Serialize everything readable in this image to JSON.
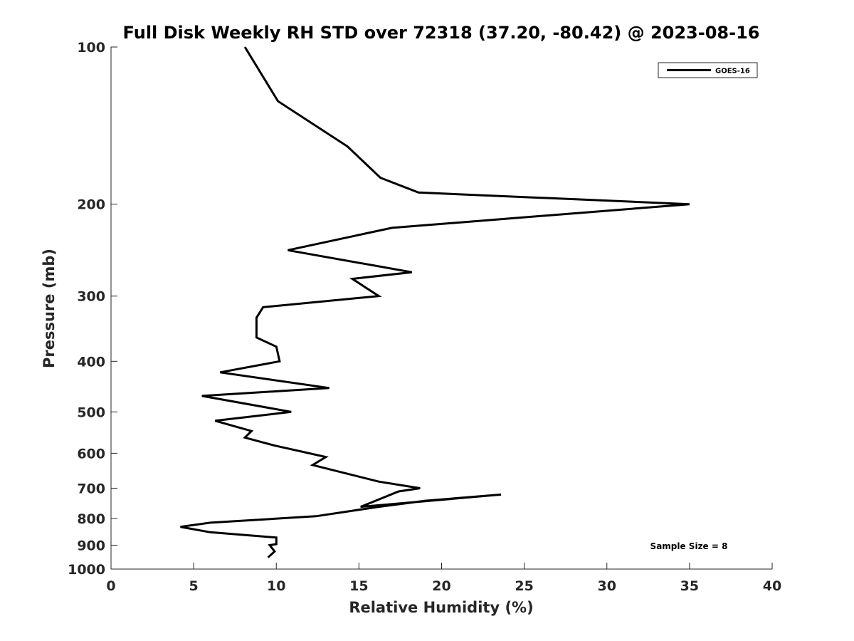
{
  "chart_data": {
    "type": "line",
    "title": "Full Disk Weekly RH STD over 72318 (37.20, -80.42) @ 2023-08-16",
    "xlabel": "Relative Humidity (%)",
    "ylabel": "Pressure (mb)",
    "xlim": [
      0,
      40
    ],
    "ylim": [
      100,
      1000
    ],
    "y_scale": "log",
    "y_reversed": true,
    "x_ticks": [
      "0",
      "5",
      "10",
      "15",
      "20",
      "25",
      "30",
      "35",
      "40"
    ],
    "y_ticks": [
      "100",
      "200",
      "300",
      "400",
      "500",
      "600",
      "700",
      "800",
      "900",
      "1000"
    ],
    "legend": {
      "position": "top-right",
      "entries": [
        "GOES-16"
      ]
    },
    "annotation": "Sample Size = 8",
    "series": [
      {
        "name": "GOES-16",
        "color": "#000000",
        "x": [
          8.1,
          10.1,
          14.3,
          16.3,
          18.6,
          35.0,
          17.0,
          10.7,
          18.2,
          14.6,
          16.2,
          9.2,
          8.8,
          8.8,
          10.0,
          10.2,
          6.6,
          13.2,
          5.5,
          10.9,
          6.3,
          8.5,
          8.1,
          9.9,
          13.0,
          12.2,
          16.2,
          18.7,
          17.4,
          15.1,
          23.6,
          19.0,
          16.2,
          12.4,
          6.0,
          4.2,
          6.0,
          10.0,
          10.0,
          9.6,
          9.9,
          9.5
        ],
        "y": [
          100,
          127,
          155,
          178,
          190,
          200,
          222,
          245,
          270,
          278,
          300,
          315,
          330,
          360,
          375,
          400,
          420,
          450,
          466,
          500,
          520,
          544,
          560,
          580,
          610,
          632,
          680,
          700,
          710,
          760,
          720,
          740,
          760,
          792,
          815,
          830,
          850,
          870,
          896,
          900,
          925,
          950
        ]
      }
    ]
  }
}
